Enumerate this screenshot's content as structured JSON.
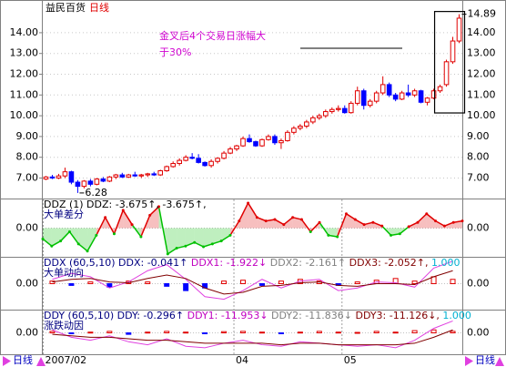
{
  "chart_data": {
    "type": "candlestick",
    "title": "益民百货",
    "period": "日线",
    "annotation": [
      "金叉后4个交易日涨幅大",
      "于30%"
    ],
    "up_color": "#e00000",
    "down_color": "#0000ff",
    "grid": true,
    "ylim": [
      6.1,
      15.4
    ],
    "yticks": [
      {
        "value": 7,
        "label": "7.00"
      },
      {
        "value": 8,
        "label": "8.00"
      },
      {
        "value": 9,
        "label": "9.00"
      },
      {
        "value": 10,
        "label": "10.00"
      },
      {
        "value": 11,
        "label": "11.00"
      },
      {
        "value": 12,
        "label": "12.00"
      },
      {
        "value": 13,
        "label": "13.00"
      },
      {
        "value": 14,
        "label": "14.00"
      }
    ],
    "ohlc": [
      [
        6.95,
        7.1,
        6.9,
        7.05
      ],
      [
        7.05,
        7.15,
        6.95,
        7.0
      ],
      [
        7.0,
        7.2,
        6.95,
        7.1
      ],
      [
        7.1,
        7.5,
        7.0,
        7.3
      ],
      [
        7.3,
        7.35,
        6.7,
        6.8
      ],
      [
        6.8,
        6.9,
        6.28,
        6.6
      ],
      [
        6.6,
        6.9,
        6.5,
        6.85
      ],
      [
        6.85,
        6.95,
        6.6,
        6.7
      ],
      [
        6.7,
        7.0,
        6.65,
        6.95
      ],
      [
        6.95,
        7.05,
        6.8,
        6.85
      ],
      [
        6.85,
        7.1,
        6.8,
        7.05
      ],
      [
        7.05,
        7.2,
        6.95,
        7.15
      ],
      [
        7.15,
        7.25,
        7.0,
        7.05
      ],
      [
        7.05,
        7.2,
        7.0,
        7.15
      ],
      [
        7.15,
        7.3,
        7.05,
        7.1
      ],
      [
        7.1,
        7.2,
        7.0,
        7.15
      ],
      [
        7.15,
        7.25,
        7.05,
        7.2
      ],
      [
        7.2,
        7.3,
        7.1,
        7.15
      ],
      [
        7.15,
        7.4,
        7.1,
        7.35
      ],
      [
        7.35,
        7.6,
        7.3,
        7.55
      ],
      [
        7.55,
        7.8,
        7.5,
        7.7
      ],
      [
        7.7,
        7.95,
        7.6,
        7.85
      ],
      [
        7.85,
        8.1,
        7.8,
        8.0
      ],
      [
        8.0,
        8.2,
        7.9,
        7.95
      ],
      [
        7.95,
        8.15,
        7.7,
        7.75
      ],
      [
        7.75,
        7.8,
        7.55,
        7.6
      ],
      [
        7.6,
        7.9,
        7.5,
        7.8
      ],
      [
        7.8,
        8.0,
        7.7,
        7.95
      ],
      [
        7.95,
        8.3,
        7.9,
        8.2
      ],
      [
        8.2,
        8.5,
        8.15,
        8.4
      ],
      [
        8.4,
        8.6,
        8.3,
        8.55
      ],
      [
        8.55,
        9.0,
        8.5,
        8.9
      ],
      [
        8.9,
        9.1,
        8.7,
        8.75
      ],
      [
        8.75,
        8.8,
        8.5,
        8.55
      ],
      [
        8.55,
        8.9,
        8.5,
        8.85
      ],
      [
        8.85,
        9.1,
        8.8,
        9.0
      ],
      [
        9.0,
        9.1,
        8.6,
        8.7
      ],
      [
        8.7,
        8.9,
        8.4,
        8.8
      ],
      [
        8.8,
        9.3,
        8.75,
        9.2
      ],
      [
        9.2,
        9.5,
        9.1,
        9.4
      ],
      [
        9.4,
        9.6,
        9.3,
        9.5
      ],
      [
        9.5,
        9.8,
        9.4,
        9.7
      ],
      [
        9.7,
        10.0,
        9.6,
        9.9
      ],
      [
        9.9,
        10.1,
        9.8,
        10.0
      ],
      [
        10.0,
        10.3,
        9.9,
        10.2
      ],
      [
        10.2,
        10.4,
        10.1,
        10.3
      ],
      [
        10.3,
        10.5,
        10.2,
        10.35
      ],
      [
        10.35,
        10.5,
        10.1,
        10.15
      ],
      [
        10.15,
        10.7,
        10.1,
        10.6
      ],
      [
        10.6,
        11.4,
        10.5,
        11.2
      ],
      [
        11.2,
        11.3,
        10.3,
        10.5
      ],
      [
        10.5,
        10.8,
        10.4,
        10.7
      ],
      [
        10.7,
        11.2,
        10.6,
        11.1
      ],
      [
        11.1,
        11.9,
        11.0,
        11.5
      ],
      [
        11.5,
        11.6,
        10.9,
        11.0
      ],
      [
        11.0,
        11.1,
        10.7,
        10.8
      ],
      [
        10.8,
        11.2,
        10.75,
        11.1
      ],
      [
        11.1,
        11.5,
        10.9,
        11.0
      ],
      [
        11.0,
        11.3,
        10.9,
        11.2
      ],
      [
        11.2,
        11.25,
        10.6,
        10.65
      ],
      [
        10.65,
        10.9,
        10.5,
        10.85
      ],
      [
        10.85,
        11.3,
        10.8,
        11.2
      ],
      [
        11.2,
        11.5,
        11.1,
        11.4
      ],
      [
        11.5,
        12.7,
        11.4,
        12.6
      ],
      [
        12.6,
        13.8,
        12.5,
        13.6
      ],
      [
        13.6,
        14.89,
        13.5,
        14.7
      ]
    ],
    "x_labels": [
      "2007/02",
      "04",
      "05"
    ],
    "indicators": [
      {
        "type": "area",
        "header": [
          {
            "text": "DDZ (1) DDZ: -3.675↑, -3.675↑,",
            "color": "#000000"
          }
        ],
        "name": "大单差分",
        "ylim": [
          -4,
          4
        ],
        "yticks": [
          {
            "value": 0,
            "label": "0.00"
          }
        ],
        "up_color": "#e00000",
        "down_color": "#00c000",
        "values": [
          -1.5,
          -2.5,
          -1.8,
          -0.5,
          -2.2,
          -3.2,
          -1,
          1.5,
          -0.8,
          2.5,
          0.5,
          -1.2,
          1.8,
          3.0,
          -3.6,
          -2.8,
          -2.5,
          -2.0,
          -2.6,
          -2.2,
          -1.8,
          -1,
          1,
          3.5,
          1.5,
          1.0,
          1.2,
          0.5,
          1.5,
          1.2,
          -0.5,
          0.8,
          -1.0,
          -1.2,
          2.0,
          1.2,
          0.5,
          0.8,
          0.3,
          -1,
          -0.8,
          0.2,
          0.8,
          2,
          1,
          0.3,
          0.8,
          1
        ]
      },
      {
        "type": "line",
        "header": [
          {
            "text": "DDX (60,5,10) DDX: -0.041↑",
            "color": "#000080"
          },
          {
            "text": " DDX1: -1.922↓",
            "color": "#c000c0"
          },
          {
            "text": " DDX2: -2.161↑",
            "color": "#808080"
          },
          {
            "text": " DDX3: -2.052↑,",
            "color": "#800000"
          },
          {
            "text": " 1.000",
            "color": "#00b0d0"
          }
        ],
        "name": "大单动向",
        "ylim": [
          -3,
          3
        ],
        "yticks": [
          {
            "value": 0,
            "label": "0.00"
          }
        ],
        "up_color": "#e00000",
        "down_color": "#0000ff",
        "bars": [
          0.3,
          -0.2,
          0.2,
          -0.4,
          0.3,
          0.2,
          -0.3,
          -0.8,
          -0.5,
          0.3,
          0.4,
          -0.2,
          0.3,
          0.5,
          0.3,
          -0.2,
          0.2,
          0.4,
          0.6,
          0.3,
          0.8,
          0.5
        ],
        "series": [
          {
            "color": "#e040e0",
            "values": [
              0.5,
              1.2,
              0.8,
              -0.5,
              0.2,
              1.5,
              2.2,
              0.5,
              -1.5,
              -1.8,
              -0.8,
              0.5,
              -0.5,
              0.3,
              0.5,
              -0.8,
              -0.5,
              0.2,
              0.1,
              -0.4,
              1.8,
              2.6
            ]
          },
          {
            "color": "#800000",
            "values": [
              0.2,
              0.5,
              0.6,
              0.2,
              0.1,
              0.6,
              1.0,
              0.6,
              -0.5,
              -1.2,
              -1.0,
              -0.3,
              -0.2,
              0.1,
              0.2,
              -0.2,
              -0.3,
              0.0,
              0.0,
              -0.1,
              0.8,
              1.5
            ]
          }
        ]
      },
      {
        "type": "line",
        "header": [
          {
            "text": "DDY (60,5,10) DDY: -0.296↑",
            "color": "#000080"
          },
          {
            "text": " DDY1: -11.953↓",
            "color": "#c000c0"
          },
          {
            "text": " DDY2: -11.836↓",
            "color": "#808080"
          },
          {
            "text": " DDY3: -11.126↓,",
            "color": "#800000"
          },
          {
            "text": " 1.000",
            "color": "#00b0d0"
          }
        ],
        "name": "涨跌动因",
        "ylim": [
          -15,
          15
        ],
        "yticks": [
          {
            "value": 0,
            "label": "0.00"
          }
        ],
        "up_color": "#e00000",
        "down_color": "#0000ff",
        "bars": [
          1,
          -0.5,
          0.5,
          1,
          -1,
          0.5,
          1,
          0.5,
          -0.5,
          0.8,
          1,
          0.5,
          -0.3,
          0.5,
          1,
          0.5,
          0.3,
          1,
          0.5,
          1.5,
          2,
          1
        ],
        "series": [
          {
            "color": "#e040e0",
            "values": [
              2,
              -3,
              -5,
              -2,
              -6,
              -8,
              -4,
              -9,
              -10,
              -7,
              -5,
              -8,
              -9,
              -6,
              -7,
              -8,
              -9,
              -8,
              -10,
              -5,
              3,
              8
            ]
          },
          {
            "color": "#800000",
            "values": [
              -1,
              -2,
              -3,
              -3,
              -4,
              -5,
              -5,
              -6,
              -7,
              -7,
              -7,
              -7,
              -8,
              -7,
              -7,
              -8,
              -8,
              -8,
              -8,
              -7,
              -3,
              2
            ]
          }
        ]
      }
    ]
  }
}
